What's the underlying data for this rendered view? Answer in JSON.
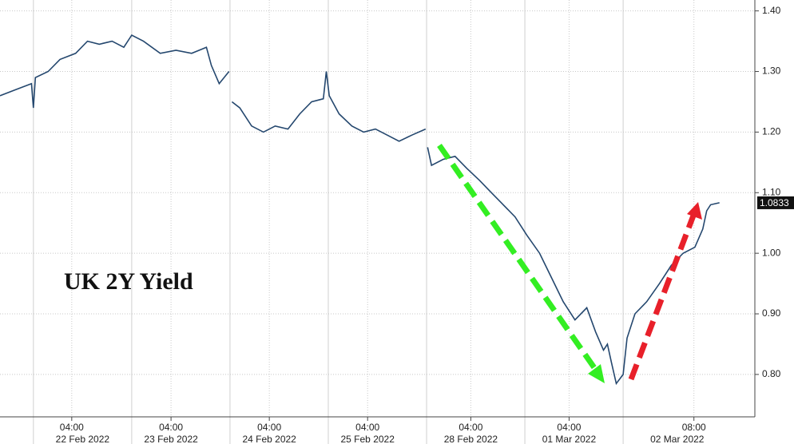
{
  "chart_data": {
    "type": "line",
    "annotation": "UK 2Y Yield",
    "x": [
      -3.4,
      -1.8,
      -0.2,
      0,
      0.2,
      1.5,
      2.7,
      4.3,
      5.5,
      6.7,
      8.0,
      9.2,
      10.0,
      11.2,
      12.9,
      14.5,
      16.1,
      17.6,
      18.1,
      18.9,
      19.9,
      20.0,
      20.2,
      21.0,
      22.2,
      23.4,
      24.6,
      25.9,
      27.1,
      28.3,
      29.5,
      29.8,
      30.1,
      31.1,
      32.4,
      33.6,
      34.8,
      36.0,
      37.2,
      38.5,
      39.9,
      40.0,
      40.1,
      40.5,
      41.7,
      42.9,
      44.1,
      45.4,
      46.6,
      47.8,
      49.0,
      50.2,
      51.5,
      52.7,
      53.9,
      55.1,
      56.3,
      57.2,
      58.0,
      58.4,
      58.8,
      59.3,
      60.0,
      60.4,
      61.2,
      62.4,
      63.7,
      64.9,
      66.1,
      67.3,
      68.1,
      68.5,
      68.9,
      69.8
    ],
    "series": [
      {
        "color": "#24476e",
        "values": [
          1.26,
          1.27,
          1.28,
          1.24,
          1.29,
          1.3,
          1.32,
          1.33,
          1.35,
          1.345,
          1.35,
          1.34,
          1.36,
          1.35,
          1.33,
          1.335,
          1.33,
          1.34,
          1.31,
          1.28,
          1.3,
          null,
          1.25,
          1.24,
          1.21,
          1.2,
          1.21,
          1.205,
          1.23,
          1.25,
          1.255,
          1.3,
          1.26,
          1.23,
          1.21,
          1.2,
          1.205,
          1.195,
          1.185,
          1.195,
          1.205,
          null,
          1.175,
          1.145,
          1.155,
          1.16,
          1.14,
          1.12,
          1.1,
          1.08,
          1.06,
          1.03,
          1.0,
          0.96,
          0.92,
          0.89,
          0.91,
          0.87,
          0.84,
          0.85,
          0.82,
          0.785,
          0.8,
          0.86,
          0.9,
          0.92,
          0.95,
          0.98,
          1.0,
          1.01,
          1.04,
          1.07,
          1.08,
          1.0833
        ]
      }
    ],
    "last_value": 1.0833,
    "xlim": [
      -3.4,
      73.4
    ],
    "xticks": [
      {
        "value": 3.9,
        "label": "04:00"
      },
      {
        "value": 14.0,
        "label": "04:00"
      },
      {
        "value": 24.0,
        "label": "04:00"
      },
      {
        "value": 34.0,
        "label": "04:00"
      },
      {
        "value": 44.5,
        "label": "04:00"
      },
      {
        "value": 54.5,
        "label": "04:00"
      },
      {
        "value": 67.2,
        "label": "08:00"
      }
    ],
    "date_labels": [
      {
        "value": 5.0,
        "label": "22 Feb 2022"
      },
      {
        "value": 14.0,
        "label": "23 Feb 2022"
      },
      {
        "value": 24.0,
        "label": "24 Feb 2022"
      },
      {
        "value": 34.0,
        "label": "25 Feb 2022"
      },
      {
        "value": 44.5,
        "label": "28 Feb 2022"
      },
      {
        "value": 54.5,
        "label": "01 Mar 2022"
      },
      {
        "value": 65.5,
        "label": "02 Mar 2022"
      }
    ],
    "day_lines": [
      0,
      10,
      20,
      30,
      40,
      50,
      60
    ],
    "ylim": [
      0.73,
      1.418
    ],
    "yticks": [
      {
        "value": 0.8,
        "label": "0.80"
      },
      {
        "value": 0.9,
        "label": "0.90"
      },
      {
        "value": 1.0,
        "label": "1.00"
      },
      {
        "value": 1.1,
        "label": "1.10"
      },
      {
        "value": 1.2,
        "label": "1.20"
      },
      {
        "value": 1.3,
        "label": "1.30"
      },
      {
        "value": 1.4,
        "label": "1.40"
      }
    ],
    "grid": true
  }
}
